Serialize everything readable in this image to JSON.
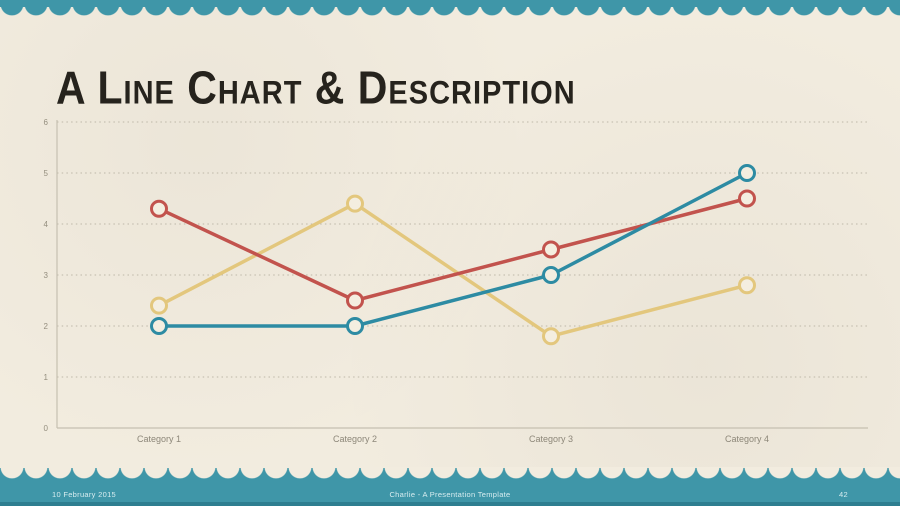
{
  "slide": {
    "title": "A Line Chart & Description",
    "footer": {
      "date": "10 February 2015",
      "center": "Charlie - A Presentation Template",
      "page_number": "42"
    }
  },
  "theme": {
    "background": "#f2ecdf",
    "border_teal": "#3f96a8",
    "footer_edge_teal": "#2e7e90",
    "title_color": "#26231d",
    "grid_color": "#bdb7a8",
    "axis_color": "#c6c0b1",
    "tick_label_color": "#948e7e",
    "point_fill": "#f4eee0"
  },
  "chart_data": {
    "type": "line",
    "title": "",
    "xlabel": "",
    "ylabel": "",
    "categories": [
      "Category 1",
      "Category 2",
      "Category 3",
      "Category 4"
    ],
    "series": [
      {
        "name": "yellow-series",
        "color": "#e3c77d",
        "values": [
          2.4,
          4.4,
          1.8,
          2.8
        ]
      },
      {
        "name": "red-series",
        "color": "#c2534d",
        "values": [
          4.3,
          2.5,
          3.5,
          4.5
        ]
      },
      {
        "name": "teal-series",
        "color": "#2d8ba3",
        "values": [
          2.0,
          2.0,
          3.0,
          5.0
        ]
      }
    ],
    "ylim": [
      0,
      6
    ],
    "yticks": [
      0,
      1,
      2,
      3,
      4,
      5,
      6
    ],
    "grid": "horizontal-dotted",
    "legend": "none",
    "marker": "open-circle"
  }
}
